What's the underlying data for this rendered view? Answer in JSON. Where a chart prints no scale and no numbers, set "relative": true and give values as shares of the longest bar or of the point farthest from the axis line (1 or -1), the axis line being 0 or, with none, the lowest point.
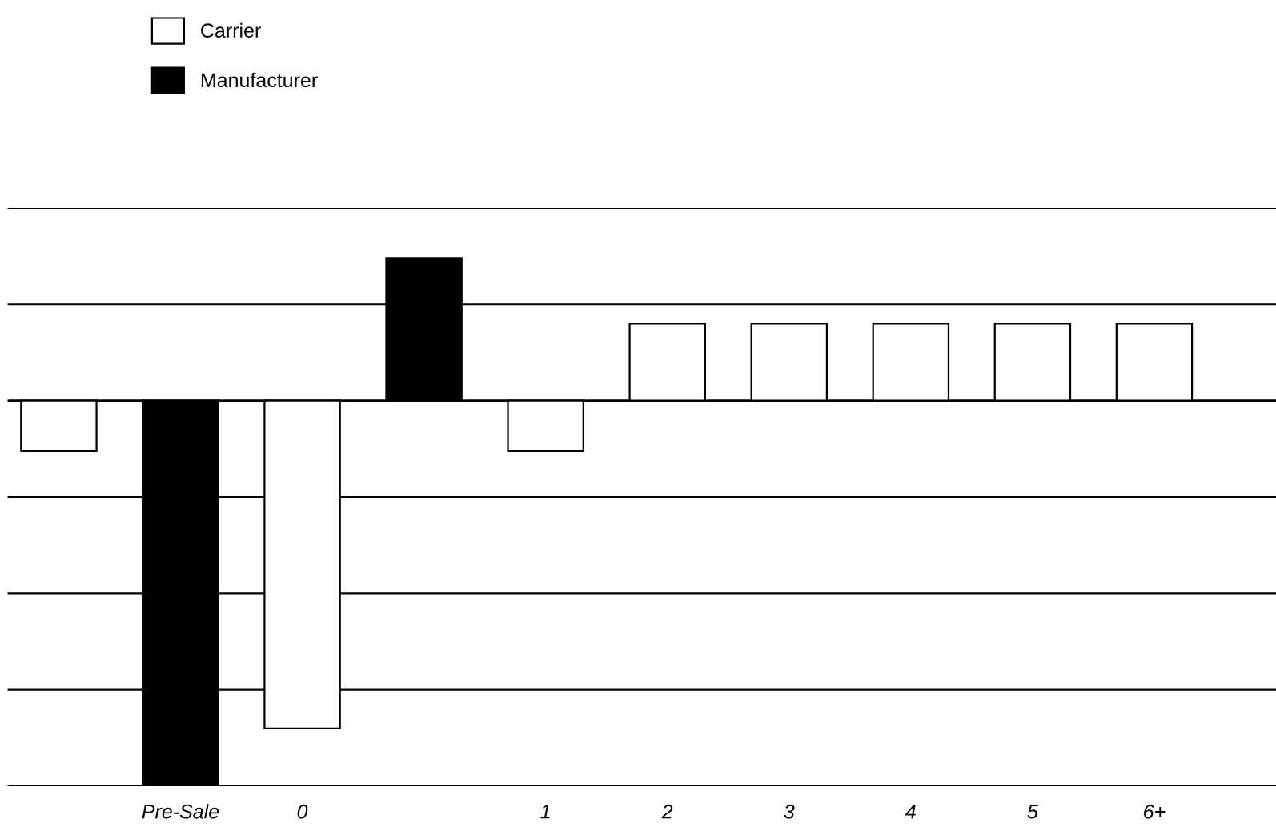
{
  "chart_data": {
    "type": "bar",
    "relative": true,
    "categories": [
      null,
      "Pre-Sale",
      "0",
      null,
      "1",
      "2",
      "3",
      "4",
      "5",
      "6+"
    ],
    "series": [
      {
        "name": "Carrier",
        "color": "#ffffff",
        "values": [
          -0.13,
          null,
          -0.85,
          null,
          -0.13,
          0.2,
          0.2,
          0.2,
          0.2,
          0.2
        ]
      },
      {
        "name": "Manufacturer",
        "color": "#000000",
        "values": [
          null,
          -1,
          null,
          0.37,
          null,
          null,
          null,
          null,
          null,
          null
        ]
      }
    ],
    "grid": "y",
    "legend": "top left"
  }
}
